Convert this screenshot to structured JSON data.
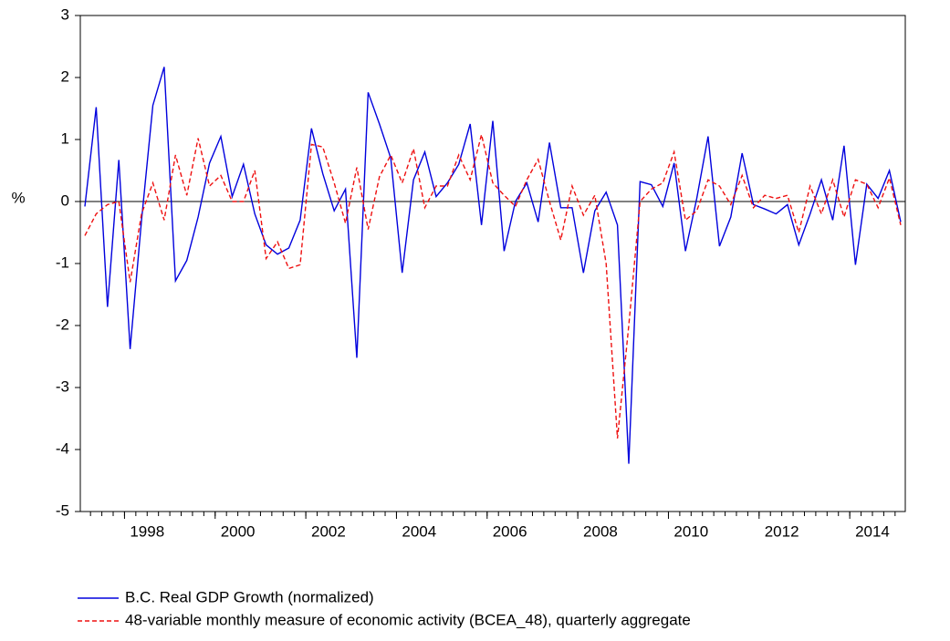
{
  "chart_data": {
    "type": "line",
    "y_label": "%",
    "x": [
      1997,
      1997.25,
      1997.5,
      1997.75,
      1998,
      1998.25,
      1998.5,
      1998.75,
      1999,
      1999.25,
      1999.5,
      1999.75,
      2000,
      2000.25,
      2000.5,
      2000.75,
      2001,
      2001.25,
      2001.5,
      2001.75,
      2002,
      2002.25,
      2002.5,
      2002.75,
      2003,
      2003.25,
      2003.5,
      2003.75,
      2004,
      2004.25,
      2004.5,
      2004.75,
      2005,
      2005.25,
      2005.5,
      2005.75,
      2006,
      2006.25,
      2006.5,
      2006.75,
      2007,
      2007.25,
      2007.5,
      2007.75,
      2008,
      2008.25,
      2008.5,
      2008.75,
      2009,
      2009.25,
      2009.5,
      2009.75,
      2010,
      2010.25,
      2010.5,
      2010.75,
      2011,
      2011.25,
      2011.5,
      2011.75,
      2012,
      2012.25,
      2012.5,
      2012.75,
      2013,
      2013.25,
      2013.5,
      2013.75,
      2014,
      2014.25,
      2014.5,
      2014.75,
      2015
    ],
    "series": [
      {
        "name": "B.C. Real GDP Growth (normalized)",
        "color": "#0000dd",
        "dash": "solid",
        "values": [
          -0.08,
          1.52,
          -1.7,
          0.67,
          -2.38,
          -0.3,
          1.55,
          2.17,
          -1.28,
          -0.95,
          -0.25,
          0.62,
          1.05,
          0.08,
          0.6,
          -0.2,
          -0.7,
          -0.85,
          -0.75,
          -0.3,
          1.18,
          0.45,
          -0.15,
          0.2,
          -2.52,
          1.76,
          1.25,
          0.7,
          -1.15,
          0.35,
          0.8,
          0.08,
          0.3,
          0.6,
          1.25,
          -0.38,
          1.3,
          -0.8,
          0.0,
          0.3,
          -0.33,
          0.95,
          -0.1,
          -0.1,
          -1.15,
          -0.15,
          0.15,
          -0.38,
          -4.23,
          0.32,
          0.27,
          -0.08,
          0.62,
          -0.8,
          0.05,
          1.05,
          -0.72,
          -0.25,
          0.78,
          -0.05,
          -0.12,
          -0.2,
          -0.05,
          -0.7,
          -0.2,
          0.35,
          -0.3,
          0.9,
          -1.02,
          0.28,
          0.05,
          0.5,
          -0.33
        ]
      },
      {
        "name": "48-variable monthly measure of economic activity (BCEA_48), quarterly aggregate",
        "color": "#ee1111",
        "dash": "dashed",
        "values": [
          -0.55,
          -0.2,
          -0.05,
          0.0,
          -1.3,
          -0.2,
          0.3,
          -0.3,
          0.75,
          0.1,
          1.02,
          0.25,
          0.42,
          0.0,
          0.0,
          0.5,
          -0.92,
          -0.65,
          -1.08,
          -1.02,
          0.92,
          0.88,
          0.3,
          -0.35,
          0.55,
          -0.45,
          0.4,
          0.75,
          0.3,
          0.85,
          -0.1,
          0.25,
          0.25,
          0.75,
          0.35,
          1.08,
          0.3,
          0.1,
          -0.08,
          0.35,
          0.68,
          0.0,
          -0.62,
          0.25,
          -0.22,
          0.1,
          -1.0,
          -3.82,
          -2.0,
          0.0,
          0.2,
          0.3,
          0.8,
          -0.3,
          -0.15,
          0.35,
          0.25,
          -0.05,
          0.42,
          -0.1,
          0.1,
          0.05,
          0.1,
          -0.5,
          0.25,
          -0.2,
          0.35,
          -0.25,
          0.35,
          0.28,
          -0.1,
          0.38,
          -0.38
        ]
      }
    ],
    "xlim": [
      1996.9,
      2015.1
    ],
    "xticks": [
      1998,
      2000,
      2002,
      2004,
      2006,
      2008,
      2010,
      2012,
      2014
    ],
    "ylim": [
      -5,
      3
    ],
    "yticks": [
      3,
      2,
      1,
      0,
      -1,
      -2,
      -3,
      -4,
      -5
    ],
    "grid": false,
    "legend": "bottom-left"
  }
}
